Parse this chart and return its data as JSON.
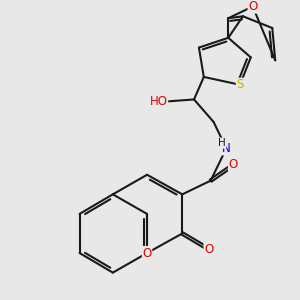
{
  "bg_color": "#e8e8e8",
  "bond_color": "#1a1a1a",
  "bond_width": 1.5,
  "atom_colors": {
    "O": "#e00000",
    "S": "#c8b400",
    "N": "#0000cc",
    "C": "#1a1a1a"
  },
  "font_size": 8.5,
  "fig_size": [
    3.0,
    3.0
  ],
  "dpi": 100
}
